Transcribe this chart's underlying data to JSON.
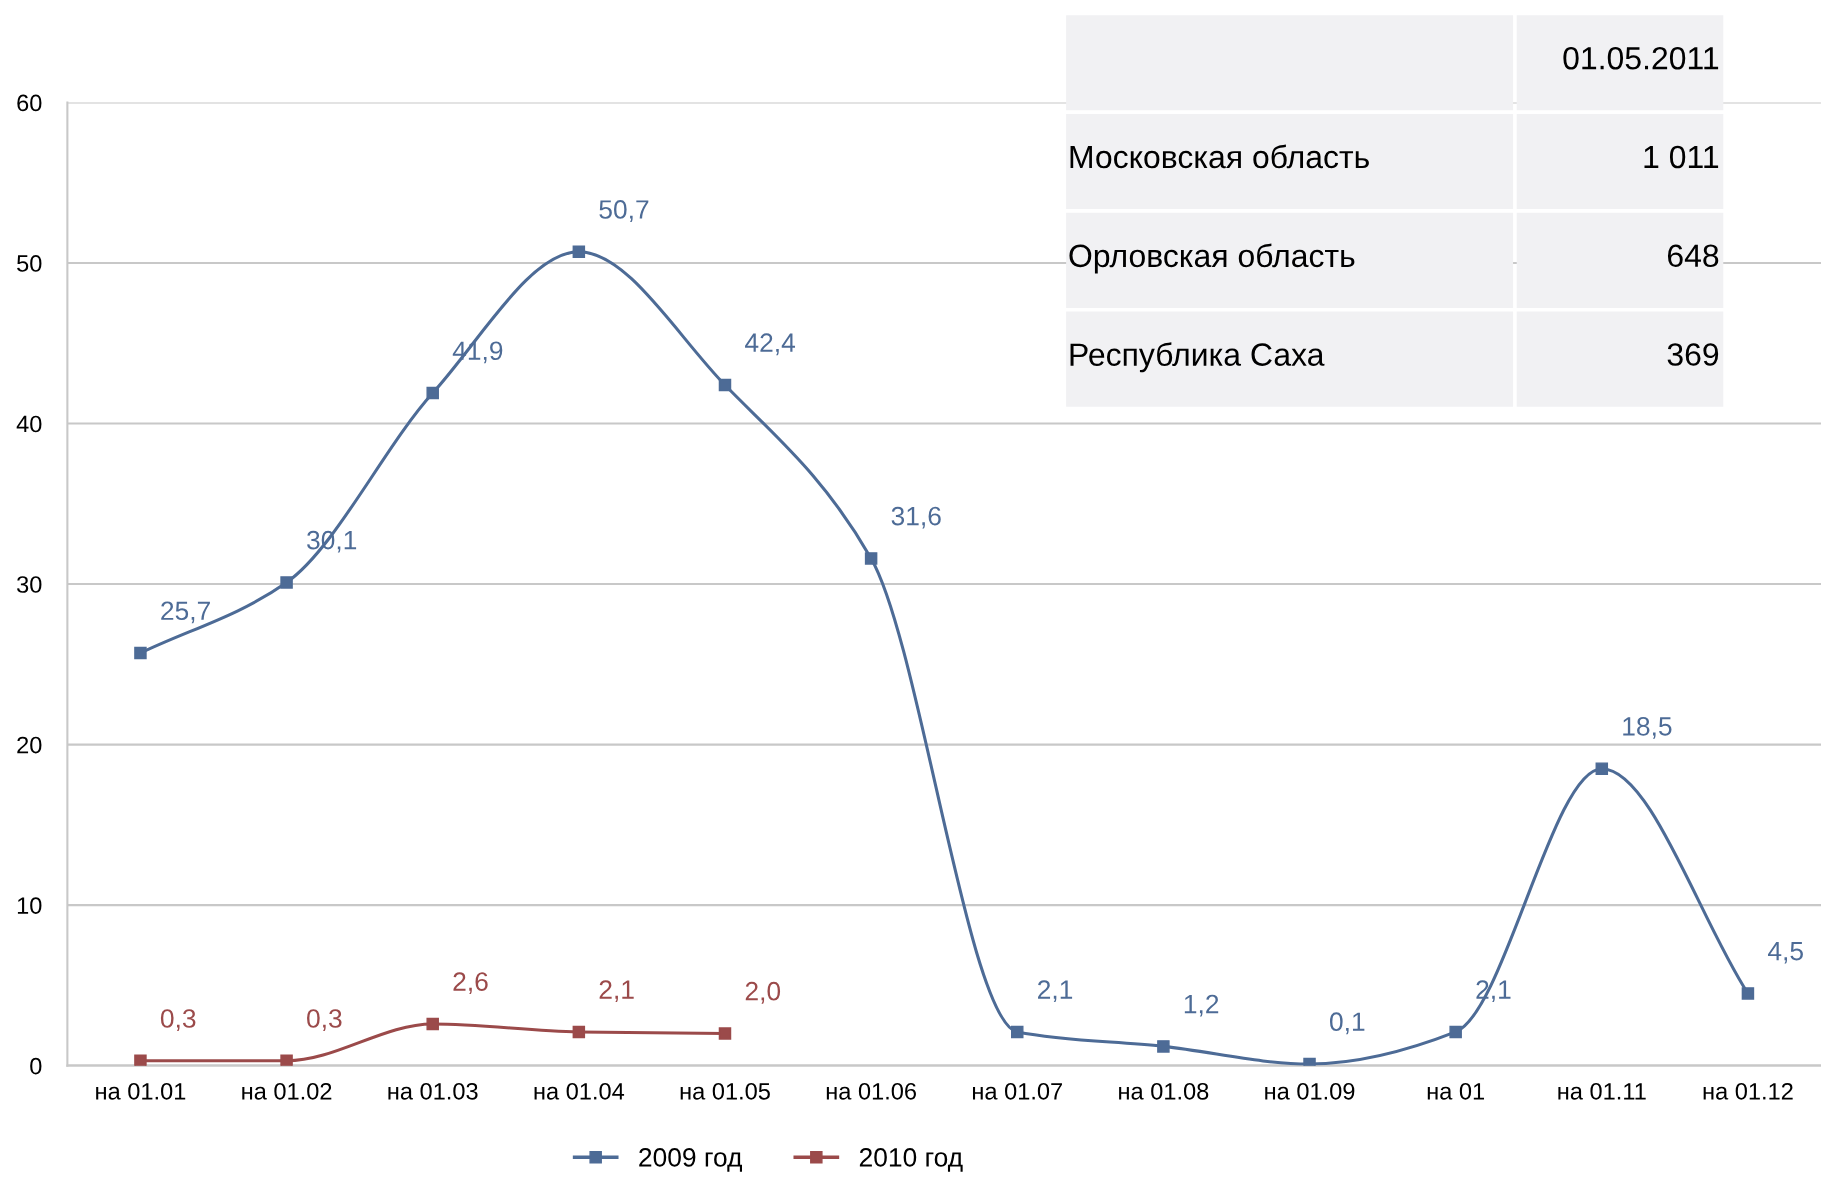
{
  "chart_data": {
    "type": "line",
    "categories": [
      "на 01.01",
      "на 01.02",
      "на 01.03",
      "на 01.04",
      "на 01.05",
      "на 01.06",
      "на 01.07",
      "на 01.08",
      "на 01.09",
      "на 01",
      "на 01.11",
      "на 01.12"
    ],
    "series": [
      {
        "name": "2009 год",
        "color": "#4d6b96",
        "values": [
          25.7,
          30.1,
          41.9,
          50.7,
          42.4,
          31.6,
          2.1,
          1.2,
          0.1,
          2.1,
          18.5,
          4.5
        ],
        "value_labels": [
          "25,7",
          "30,1",
          "41,9",
          "50,7",
          "42,4",
          "31,6",
          "2,1",
          "1,2",
          "0,1",
          "2,1",
          "18,5",
          "4,5"
        ]
      },
      {
        "name": "2010 год",
        "color": "#9b4a4a",
        "values": [
          0.3,
          0.3,
          2.6,
          2.1,
          2.0,
          null,
          null,
          null,
          null,
          null,
          null,
          null
        ],
        "value_labels": [
          "0,3",
          "0,3",
          "2,6",
          "2,1",
          "2,0",
          null,
          null,
          null,
          null,
          null,
          null,
          null
        ]
      }
    ],
    "ylim": [
      0,
      60
    ],
    "yticks": [
      0,
      10,
      20,
      30,
      40,
      50,
      60
    ],
    "grid": "y",
    "legend": "bottom",
    "marker": "square",
    "line_style": "solid",
    "annotations": [
      "01.05.2011",
      "Московская область",
      "1 011",
      "Орловская область",
      "648",
      "Республика Саха",
      "369"
    ]
  }
}
